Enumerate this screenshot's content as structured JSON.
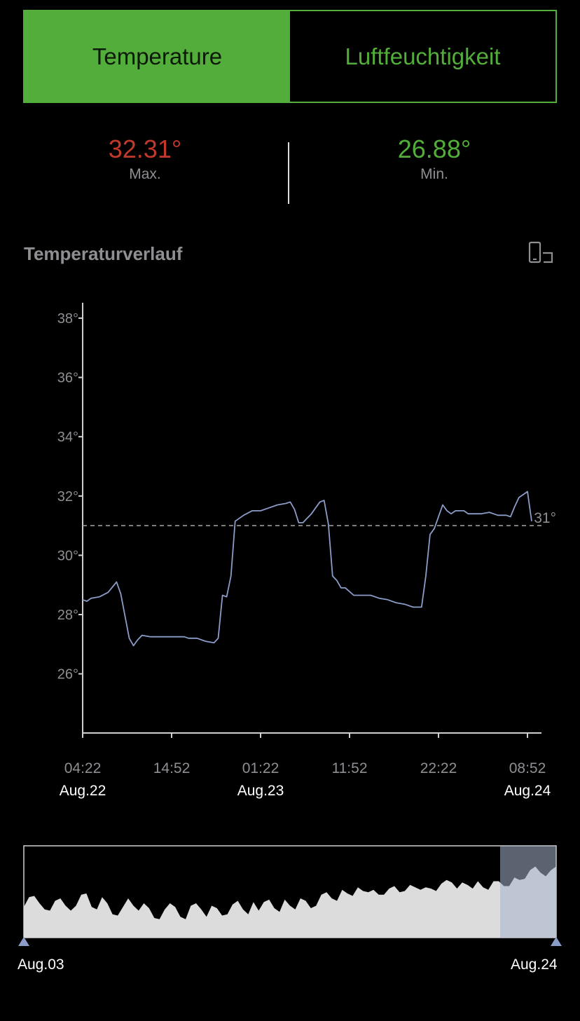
{
  "tabs": [
    {
      "label": "Temperature",
      "active": true
    },
    {
      "label": "Luftfeuchtigkeit",
      "active": false
    }
  ],
  "stats": {
    "max": {
      "value": "32.31°",
      "label": "Max.",
      "color": "#c0392b"
    },
    "min": {
      "value": "26.88°",
      "label": "Min.",
      "color": "#52ad3a"
    }
  },
  "section_title": "Temperaturverlauf",
  "rotate_icon": "rotate-device-icon",
  "colors": {
    "accent": "#52ad3a",
    "line": "#8a9cc8",
    "brush_fill": "#dcdcdc",
    "brush_selection": "#a7b4cc"
  },
  "chart_data": {
    "type": "line",
    "title": "",
    "xlabel": "",
    "ylabel": "",
    "ylim": [
      24.3,
      38.8
    ],
    "y_ticks": [
      26,
      28,
      30,
      32,
      34,
      36,
      38
    ],
    "y_tick_labels": [
      "26°",
      "28°",
      "30°",
      "32°",
      "34°",
      "36°",
      "38°"
    ],
    "x_ticks": [
      {
        "time": "04:22",
        "date": "Aug.22"
      },
      {
        "time": "14:52",
        "date": ""
      },
      {
        "time": "01:22",
        "date": "Aug.23"
      },
      {
        "time": "11:52",
        "date": ""
      },
      {
        "time": "22:22",
        "date": ""
      },
      {
        "time": "08:52",
        "date": "Aug.24"
      }
    ],
    "reference_line": {
      "value": 31,
      "label": "31°"
    },
    "series": [
      {
        "values": [
          [
            0.0,
            28.5
          ],
          [
            0.5,
            28.45
          ],
          [
            1.0,
            28.55
          ],
          [
            2.0,
            28.6
          ],
          [
            3.0,
            28.75
          ],
          [
            4.0,
            29.1
          ],
          [
            4.5,
            28.7
          ],
          [
            5.5,
            27.2
          ],
          [
            6.0,
            26.95
          ],
          [
            6.5,
            27.15
          ],
          [
            7.0,
            27.3
          ],
          [
            8.0,
            27.25
          ],
          [
            9.0,
            27.25
          ],
          [
            10.0,
            27.25
          ],
          [
            11.0,
            27.25
          ],
          [
            12.0,
            27.25
          ],
          [
            12.5,
            27.2
          ],
          [
            13.5,
            27.2
          ],
          [
            14.5,
            27.1
          ],
          [
            15.5,
            27.05
          ],
          [
            16.0,
            27.2
          ],
          [
            16.5,
            28.65
          ],
          [
            17.0,
            28.6
          ],
          [
            17.5,
            29.3
          ],
          [
            18.0,
            31.15
          ],
          [
            19.0,
            31.35
          ],
          [
            20.0,
            31.5
          ],
          [
            21.0,
            31.5
          ],
          [
            22.0,
            31.6
          ],
          [
            23.0,
            31.7
          ],
          [
            24.0,
            31.75
          ],
          [
            24.5,
            31.8
          ],
          [
            25.0,
            31.55
          ],
          [
            25.5,
            31.1
          ],
          [
            26.0,
            31.1
          ],
          [
            26.5,
            31.25
          ],
          [
            27.0,
            31.4
          ],
          [
            27.5,
            31.6
          ],
          [
            28.0,
            31.8
          ],
          [
            28.5,
            31.85
          ],
          [
            29.0,
            31.05
          ],
          [
            29.5,
            29.3
          ],
          [
            30.0,
            29.15
          ],
          [
            30.5,
            28.9
          ],
          [
            31.0,
            28.9
          ],
          [
            32.0,
            28.65
          ],
          [
            33.0,
            28.65
          ],
          [
            34.0,
            28.65
          ],
          [
            35.0,
            28.55
          ],
          [
            36.0,
            28.5
          ],
          [
            37.0,
            28.4
          ],
          [
            38.0,
            28.35
          ],
          [
            39.0,
            28.25
          ],
          [
            40.0,
            28.25
          ],
          [
            40.5,
            29.3
          ],
          [
            41.0,
            30.7
          ],
          [
            41.5,
            30.9
          ],
          [
            42.0,
            31.3
          ],
          [
            42.5,
            31.7
          ],
          [
            43.0,
            31.5
          ],
          [
            43.5,
            31.4
          ],
          [
            44.0,
            31.5
          ],
          [
            45.0,
            31.5
          ],
          [
            45.5,
            31.4
          ],
          [
            46.0,
            31.4
          ],
          [
            47.0,
            31.4
          ],
          [
            48.0,
            31.45
          ],
          [
            48.5,
            31.4
          ],
          [
            49.0,
            31.35
          ],
          [
            50.0,
            31.35
          ],
          [
            50.5,
            31.3
          ],
          [
            51.0,
            31.65
          ],
          [
            51.5,
            31.95
          ],
          [
            52.0,
            32.05
          ],
          [
            52.5,
            32.15
          ],
          [
            53.0,
            31.15
          ]
        ]
      }
    ]
  },
  "brush": {
    "start_label": "Aug.03",
    "end_label": "Aug.24",
    "overview_values": [
      27.5,
      28.3,
      28.4,
      27.8,
      27.3,
      27.2,
      28.0,
      28.2,
      27.6,
      27.2,
      27.6,
      28.5,
      28.6,
      27.5,
      27.3,
      28.3,
      27.8,
      26.9,
      26.8,
      27.5,
      28.2,
      27.6,
      27.2,
      27.8,
      27.4,
      26.6,
      26.5,
      27.3,
      27.8,
      27.5,
      26.7,
      26.5,
      27.6,
      27.8,
      27.3,
      26.7,
      27.6,
      27.4,
      26.8,
      26.9,
      27.7,
      28.0,
      27.3,
      26.9,
      27.9,
      27.2,
      27.9,
      28.1,
      27.4,
      27.1,
      28.1,
      27.6,
      27.3,
      28.2,
      28.0,
      27.4,
      27.6,
      28.5,
      28.7,
      28.2,
      28.0,
      28.9,
      28.6,
      28.4,
      29.1,
      28.8,
      28.7,
      28.9,
      28.5,
      28.5,
      29.0,
      29.2,
      28.7,
      28.8,
      29.3,
      29.1,
      28.9,
      29.1,
      29.0,
      28.8,
      29.4,
      29.7,
      29.5,
      29.0,
      29.5,
      29.3,
      29.0,
      29.6,
      29.1,
      28.9,
      29.6,
      29.6,
      29.2,
      29.2,
      29.9,
      29.7,
      29.8,
      30.5,
      30.8,
      30.3,
      30.0,
      30.5,
      30.8
    ]
  }
}
